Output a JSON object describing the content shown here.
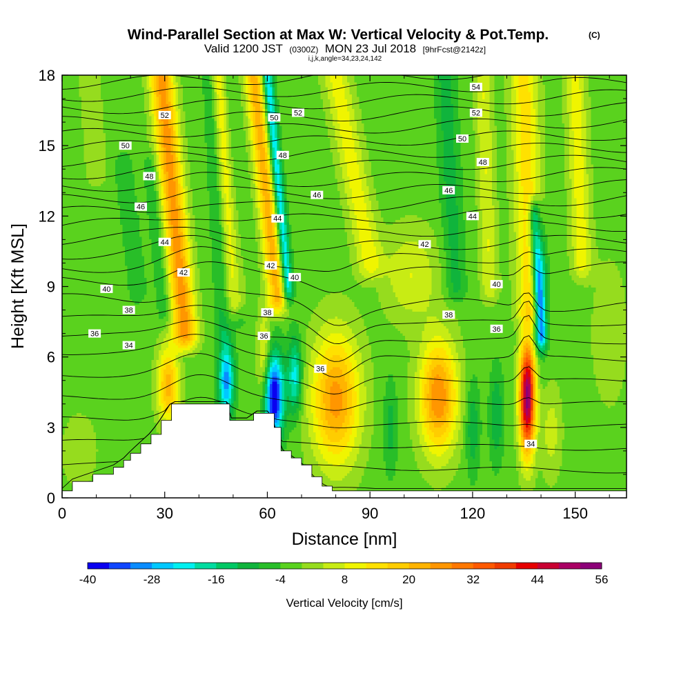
{
  "chart_data": {
    "type": "heatmap",
    "title": "Wind-Parallel Section at Max W: Vertical Velocity & Pot.Temp.",
    "title_mark": "(C)",
    "subtitle": {
      "valid": "Valid 1200 JST",
      "utc": "(0300Z)",
      "date": "MON 23 Jul 2018",
      "forecast": "[9hrFcst@2142z]"
    },
    "indices": "i,j,k,angle=34,23,24,142",
    "xlabel": "Distance [nm]",
    "ylabel": "Height [Kft MSL]",
    "xlim": [
      0,
      165
    ],
    "ylim": [
      0,
      18
    ],
    "x_ticks": [
      "0",
      "30",
      "60",
      "90",
      "120",
      "150"
    ],
    "y_ticks": [
      "0",
      "3",
      "6",
      "9",
      "12",
      "15",
      "18"
    ],
    "colorbar": {
      "label": "Vertical Velocity [cm/s]",
      "min": -40,
      "max": 56,
      "step": 4,
      "tick_labels": [
        "-40",
        "-28",
        "-16",
        "-4",
        "8",
        "20",
        "32",
        "44",
        "56"
      ],
      "colors": [
        "#0a00f0",
        "#1046ff",
        "#0a8cff",
        "#00c8ff",
        "#00f0f0",
        "#00dca0",
        "#00c864",
        "#10b43c",
        "#28be28",
        "#5ad21e",
        "#96dc1e",
        "#c8ec14",
        "#f0f500",
        "#ffe100",
        "#ffcd00",
        "#ffb400",
        "#ff9600",
        "#ff7800",
        "#ff5a00",
        "#f03c00",
        "#e60000",
        "#c80032",
        "#aa0064",
        "#8c0078"
      ]
    },
    "terrain_profile": [
      [
        0,
        0.3
      ],
      [
        3,
        0.7
      ],
      [
        9,
        1.0
      ],
      [
        15,
        1.3
      ],
      [
        18,
        1.6
      ],
      [
        20,
        1.9
      ],
      [
        23,
        2.3
      ],
      [
        26,
        2.7
      ],
      [
        29,
        3.3
      ],
      [
        32,
        4.0
      ],
      [
        40,
        4.0
      ],
      [
        48,
        4.0
      ],
      [
        49,
        3.3
      ],
      [
        55,
        3.3
      ],
      [
        56,
        3.6
      ],
      [
        61,
        3.6
      ],
      [
        62,
        3.0
      ],
      [
        64,
        2.0
      ],
      [
        67,
        1.7
      ],
      [
        70,
        1.4
      ],
      [
        73,
        0.9
      ],
      [
        76,
        0.5
      ],
      [
        79,
        0.3
      ],
      [
        165,
        0.3
      ]
    ],
    "velocity_features": [
      {
        "x": 80,
        "z": 4.2,
        "sx": 7,
        "sz": 2.8,
        "w": 28
      },
      {
        "x": 110,
        "z": 4.3,
        "sx": 5.5,
        "sz": 2.4,
        "w": 30
      },
      {
        "x": 136,
        "z": 4.3,
        "sx": 2.3,
        "sz": 2.4,
        "w": 56
      },
      {
        "x": 62,
        "z": 4.3,
        "sx": 2.8,
        "sz": 1.8,
        "w": -40
      },
      {
        "x": 48,
        "z": 5.0,
        "sx": 2.2,
        "sz": 1.6,
        "w": -28
      },
      {
        "x": 31,
        "z": 4.8,
        "sx": 3.2,
        "sz": 1.6,
        "w": 24
      },
      {
        "x": 59,
        "z": 6.0,
        "sx": 2.0,
        "sz": 2.0,
        "w": 12
      },
      {
        "x": 68,
        "z": 5.2,
        "sx": 2.0,
        "sz": 1.6,
        "w": -20
      },
      {
        "x": 96,
        "z": 3.0,
        "sx": 2.0,
        "sz": 2.0,
        "w": -8
      },
      {
        "x": 120,
        "z": 3.0,
        "sx": 2.0,
        "sz": 2.0,
        "w": -10
      },
      {
        "x": 127,
        "z": 3.5,
        "sx": 2.0,
        "sz": 2.0,
        "w": -10
      },
      {
        "x": 143,
        "z": 2.8,
        "sx": 3.0,
        "sz": 2.0,
        "w": 8
      },
      {
        "x": 102,
        "z": 9.5,
        "sx": 8.0,
        "sz": 2.0,
        "w": 10
      },
      {
        "x": 160,
        "z": 7.0,
        "sx": 5.0,
        "sz": 3.0,
        "w": 6
      },
      {
        "x": 140,
        "z": 9.0,
        "sx": 2.0,
        "sz": 2.5,
        "w": -18
      },
      {
        "x": 5,
        "z": 2.0,
        "sx": 5.0,
        "sz": 1.5,
        "w": 6
      }
    ],
    "velocity_bands": [
      {
        "x0": 36,
        "z0": 7.0,
        "x1": 29,
        "z1": 18,
        "w": 28,
        "width": 3.5
      },
      {
        "x0": 30,
        "z0": 8.0,
        "x1": 26,
        "z1": 14,
        "w": -6,
        "width": 2.2
      },
      {
        "x0": 47,
        "z0": 7.0,
        "x1": 43,
        "z1": 18,
        "w": -6,
        "width": 2.0
      },
      {
        "x0": 52,
        "z0": 8.0,
        "x1": 48,
        "z1": 18,
        "w": -6,
        "width": 1.8
      },
      {
        "x0": 63,
        "z0": 8.5,
        "x1": 56,
        "z1": 18,
        "w": 24,
        "width": 2.8
      },
      {
        "x0": 66,
        "z0": 9.0,
        "x1": 60,
        "z1": 18,
        "w": -24,
        "width": 1.6
      },
      {
        "x0": 51,
        "z0": 8.5,
        "x1": 46,
        "z1": 18,
        "w": 14,
        "width": 2.5
      },
      {
        "x0": 90,
        "z0": 10.0,
        "x1": 80,
        "z1": 18,
        "w": 12,
        "width": 4.0
      },
      {
        "x0": 137,
        "z0": 8.0,
        "x1": 135,
        "z1": 18,
        "w": 16,
        "width": 4.0
      },
      {
        "x0": 140,
        "z0": 7.0,
        "x1": 138,
        "z1": 12,
        "w": -22,
        "width": 1.6
      },
      {
        "x0": 115,
        "z0": 9.0,
        "x1": 112,
        "z1": 18,
        "w": -8,
        "width": 3.0
      },
      {
        "x0": 125,
        "z0": 9.0,
        "x1": 123,
        "z1": 18,
        "w": 10,
        "width": 2.5
      },
      {
        "x0": 152,
        "z0": 10.0,
        "x1": 150,
        "z1": 18,
        "w": 12,
        "width": 3.0
      },
      {
        "x0": 22,
        "z0": 9.0,
        "x1": 18,
        "z1": 14,
        "w": -6,
        "width": 2.5
      },
      {
        "x0": 10,
        "z0": 14.0,
        "x1": 8,
        "z1": 18,
        "w": 6,
        "width": 3.0
      }
    ],
    "isotherm_labels": [
      {
        "x": 30,
        "z": 16.3,
        "text": "52"
      },
      {
        "x": 69,
        "z": 16.4,
        "text": "52"
      },
      {
        "x": 121,
        "z": 17.5,
        "text": "54"
      },
      {
        "x": 121,
        "z": 16.4,
        "text": "52"
      },
      {
        "x": 18.5,
        "z": 15.0,
        "text": "50"
      },
      {
        "x": 62,
        "z": 16.2,
        "text": "50"
      },
      {
        "x": 117,
        "z": 15.3,
        "text": "50"
      },
      {
        "x": 25.5,
        "z": 13.7,
        "text": "48"
      },
      {
        "x": 64.5,
        "z": 14.6,
        "text": "48"
      },
      {
        "x": 123,
        "z": 14.3,
        "text": "48"
      },
      {
        "x": 23,
        "z": 12.4,
        "text": "46"
      },
      {
        "x": 74.5,
        "z": 12.9,
        "text": "46"
      },
      {
        "x": 113,
        "z": 13.1,
        "text": "46"
      },
      {
        "x": 63,
        "z": 11.9,
        "text": "44"
      },
      {
        "x": 30,
        "z": 10.9,
        "text": "44"
      },
      {
        "x": 120,
        "z": 12.0,
        "text": "44"
      },
      {
        "x": 35.5,
        "z": 9.6,
        "text": "42"
      },
      {
        "x": 61,
        "z": 9.9,
        "text": "42"
      },
      {
        "x": 106,
        "z": 10.8,
        "text": "42"
      },
      {
        "x": 13,
        "z": 8.9,
        "text": "40"
      },
      {
        "x": 68,
        "z": 9.4,
        "text": "40"
      },
      {
        "x": 127,
        "z": 9.1,
        "text": "40"
      },
      {
        "x": 19.5,
        "z": 8.0,
        "text": "38"
      },
      {
        "x": 60,
        "z": 7.9,
        "text": "38"
      },
      {
        "x": 113,
        "z": 7.8,
        "text": "38"
      },
      {
        "x": 9.5,
        "z": 7.0,
        "text": "36"
      },
      {
        "x": 59,
        "z": 6.9,
        "text": "36"
      },
      {
        "x": 75.5,
        "z": 5.5,
        "text": "36"
      },
      {
        "x": 127,
        "z": 7.2,
        "text": "36"
      },
      {
        "x": 19.5,
        "z": 6.5,
        "text": "34"
      },
      {
        "x": 137,
        "z": 2.3,
        "text": "34"
      }
    ]
  }
}
